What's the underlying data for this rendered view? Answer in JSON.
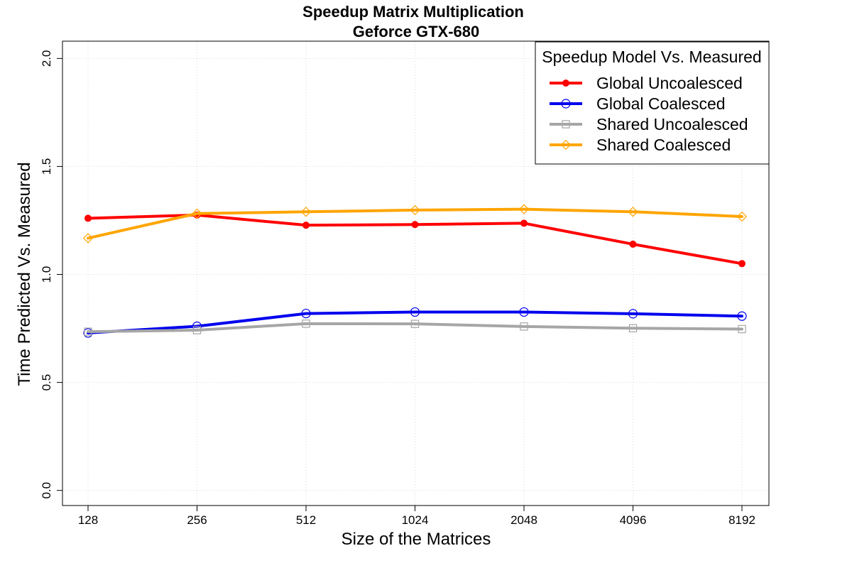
{
  "chart_data": {
    "type": "line",
    "title": "Speedup Matrix Multiplication",
    "subtitle": "Geforce GTX-680",
    "xlabel": "Size of the Matrices",
    "ylabel": "Time Predicted Vs. Measured",
    "categories": [
      "128",
      "256",
      "512",
      "1024",
      "2048",
      "4096",
      "8192"
    ],
    "ylim": [
      -0.07,
      2.08
    ],
    "yticks": [
      "0.0",
      "0.5",
      "1.0",
      "1.5",
      "2.0"
    ],
    "grid": true,
    "legend": {
      "title": "Speedup Model Vs. Measured",
      "placement": "top-right"
    },
    "series": [
      {
        "name": "Global Uncoalesced",
        "color": "#ff0000",
        "marker": "filled-circle",
        "values": [
          1.26,
          1.275,
          1.228,
          1.231,
          1.237,
          1.14,
          1.05
        ]
      },
      {
        "name": "Global Coalesced",
        "color": "#0000ee",
        "marker": "open-circle",
        "values": [
          0.729,
          0.76,
          0.819,
          0.826,
          0.826,
          0.818,
          0.807
        ]
      },
      {
        "name": "Shared Uncoalesced",
        "color": "#a6a6a6",
        "marker": "open-square",
        "values": [
          0.735,
          0.742,
          0.772,
          0.771,
          0.759,
          0.751,
          0.747
        ]
      },
      {
        "name": "Shared Coalesced",
        "color": "#ffa500",
        "marker": "open-diamond",
        "values": [
          1.168,
          1.282,
          1.29,
          1.298,
          1.302,
          1.29,
          1.268
        ]
      }
    ]
  }
}
